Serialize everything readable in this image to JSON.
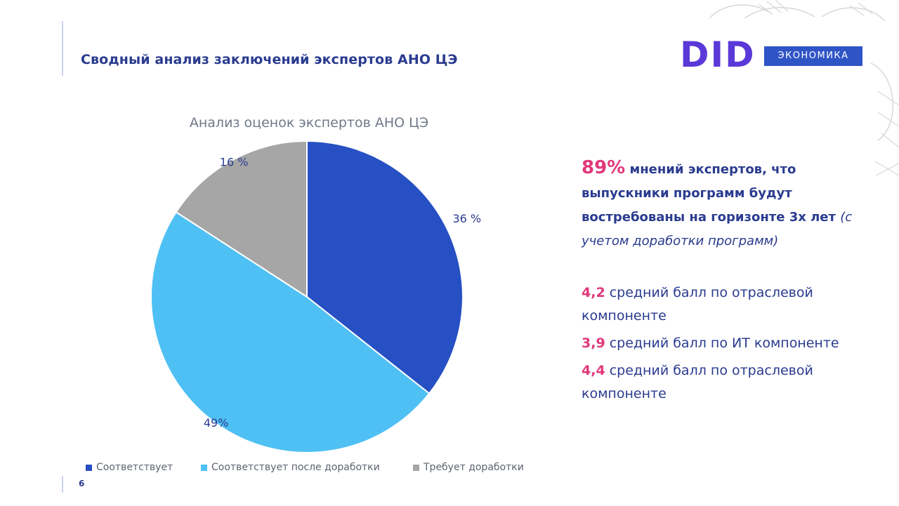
{
  "header": {
    "title": "Сводный анализ заключений экспертов АНО ЦЭ",
    "logo_did": "DID",
    "logo_economics": "ЭКОНОМИКА"
  },
  "chart_data": {
    "type": "pie",
    "title": "Анализ оценок экспертов АНО ЦЭ",
    "categories": [
      "Соответствует",
      "Соответствует после доработки",
      "Требует доработки"
    ],
    "values": [
      36,
      49,
      16
    ],
    "labels": [
      "36 %",
      "49%",
      "16 %"
    ],
    "colors": [
      "#2650c3",
      "#4fc0f4",
      "#a6a6a6"
    ],
    "legend": "bottom"
  },
  "panel": {
    "highlight_pct": "89%",
    "highlight_text": "мнений экспертов, что выпускники программ будут востребованы на горизонте 3х лет",
    "highlight_note": "(с учетом доработки программ)",
    "stats": [
      {
        "value": "4,2",
        "text": "средний балл по отраслевой компоненте"
      },
      {
        "value": "3,9",
        "text": "средний балл по ИТ компоненте"
      },
      {
        "value": "4,4",
        "text": "средний балл по отраслевой компоненте"
      }
    ]
  },
  "footer": {
    "page_number": "6"
  }
}
